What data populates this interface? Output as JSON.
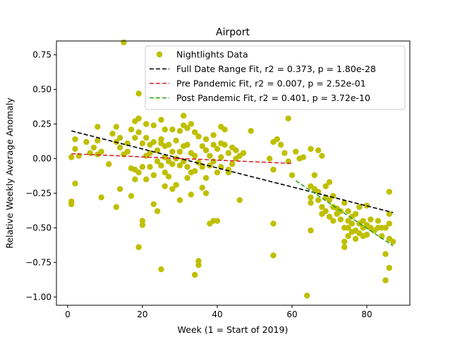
{
  "chart_data": {
    "type": "scatter",
    "title": "Airport",
    "xlabel": "Week (1 = Start of 2019)",
    "ylabel": "Relative Weekly Average Anomaly",
    "xlim": [
      -3,
      91.5
    ],
    "ylim": [
      -1.06,
      0.85
    ],
    "xticks": [
      0,
      20,
      40,
      60,
      80
    ],
    "yticks": [
      -1.0,
      -0.75,
      -0.5,
      -0.25,
      0.0,
      0.25,
      0.5,
      0.75
    ],
    "ytick_labels": [
      "−1.00",
      "−0.75",
      "−0.50",
      "−0.25",
      "0.00",
      "0.25",
      "0.50",
      "0.75"
    ],
    "grid": false,
    "legend_position": "top-right",
    "series": [
      {
        "name": "Nightlights Data",
        "kind": "scatter",
        "color": "#bfbf00",
        "points": [
          [
            1,
            0.01
          ],
          [
            1,
            -0.31
          ],
          [
            1,
            -0.33
          ],
          [
            2,
            0.14
          ],
          [
            2,
            0.07
          ],
          [
            2,
            -0.18
          ],
          [
            3,
            0.02
          ],
          [
            5,
            0.12
          ],
          [
            6,
            0.04
          ],
          [
            7,
            0.08
          ],
          [
            8,
            0.23
          ],
          [
            8,
            0.13
          ],
          [
            8,
            0.03
          ],
          [
            9,
            0.05
          ],
          [
            9,
            -0.28
          ],
          [
            11,
            -0.04
          ],
          [
            12,
            0.18
          ],
          [
            13,
            0.12
          ],
          [
            13,
            0.23
          ],
          [
            13,
            -0.35
          ],
          [
            14,
            0.15
          ],
          [
            14,
            0.08
          ],
          [
            14,
            -0.22
          ],
          [
            15,
            0.84
          ],
          [
            15,
            0.03
          ],
          [
            16,
            0.11
          ],
          [
            16,
            0.05
          ],
          [
            17,
            0.21
          ],
          [
            17,
            -0.07
          ],
          [
            17,
            -0.27
          ],
          [
            18,
            0.27
          ],
          [
            18,
            0.15
          ],
          [
            18,
            -0.08
          ],
          [
            18,
            -0.15
          ],
          [
            19,
            0.47
          ],
          [
            19,
            0.29
          ],
          [
            19,
            0.19
          ],
          [
            19,
            -0.1
          ],
          [
            19,
            -0.64
          ],
          [
            20,
            0.11
          ],
          [
            20,
            -0.06
          ],
          [
            20,
            -0.45
          ],
          [
            20,
            -0.48
          ],
          [
            21,
            0.25
          ],
          [
            21,
            0.15
          ],
          [
            21,
            0.02
          ],
          [
            21,
            -0.15
          ],
          [
            22,
            0.1
          ],
          [
            22,
            0.04
          ],
          [
            22,
            -0.06
          ],
          [
            23,
            0.24
          ],
          [
            23,
            0.12
          ],
          [
            23,
            -0.12
          ],
          [
            23,
            -0.33
          ],
          [
            24,
            0.43
          ],
          [
            24,
            0.06
          ],
          [
            24,
            -0.02
          ],
          [
            24,
            -0.38
          ],
          [
            25,
            0.28
          ],
          [
            25,
            0.14
          ],
          [
            25,
            0.11
          ],
          [
            25,
            -0.05
          ],
          [
            25,
            -0.8
          ],
          [
            26,
            0.21
          ],
          [
            26,
            0.09
          ],
          [
            26,
            0.01
          ],
          [
            26,
            -0.1
          ],
          [
            26,
            -0.2
          ],
          [
            27,
            0.1
          ],
          [
            27,
            -0.02
          ],
          [
            27,
            -0.13
          ],
          [
            28,
            0.21
          ],
          [
            28,
            0.05
          ],
          [
            28,
            -0.04
          ],
          [
            28,
            -0.22
          ],
          [
            29,
            0.13
          ],
          [
            29,
            0.0
          ],
          [
            29,
            -0.19
          ],
          [
            30,
            0.2
          ],
          [
            30,
            0.05
          ],
          [
            30,
            -0.05
          ],
          [
            30,
            -0.3
          ],
          [
            31,
            0.31
          ],
          [
            31,
            0.24
          ],
          [
            31,
            0.09
          ],
          [
            31,
            -0.02
          ],
          [
            32,
            0.22
          ],
          [
            32,
            0.1
          ],
          [
            32,
            -0.06
          ],
          [
            32,
            -0.14
          ],
          [
            33,
            0.25
          ],
          [
            33,
            0.04
          ],
          [
            33,
            -0.1
          ],
          [
            33,
            -0.26
          ],
          [
            34,
            0.19
          ],
          [
            34,
            0.02
          ],
          [
            34,
            -0.09
          ],
          [
            34,
            -0.84
          ],
          [
            35,
            0.16
          ],
          [
            35,
            -0.03
          ],
          [
            35,
            -0.74
          ],
          [
            35,
            -0.77
          ],
          [
            36,
            0.09
          ],
          [
            36,
            -0.06
          ],
          [
            36,
            -0.21
          ],
          [
            37,
            0.14
          ],
          [
            37,
            0.06
          ],
          [
            37,
            -0.14
          ],
          [
            37,
            -0.25
          ],
          [
            38,
            0.02
          ],
          [
            38,
            -0.05
          ],
          [
            38,
            -0.47
          ],
          [
            39,
            0.17
          ],
          [
            39,
            0.1
          ],
          [
            39,
            -0.02
          ],
          [
            39,
            -0.45
          ],
          [
            40,
            0.07
          ],
          [
            40,
            -0.1
          ],
          [
            40,
            -0.45
          ],
          [
            41,
            0.23
          ],
          [
            41,
            0.11
          ],
          [
            41,
            0.01
          ],
          [
            41,
            -0.06
          ],
          [
            42,
            0.21
          ],
          [
            42,
            0.1
          ],
          [
            43,
            0.04
          ],
          [
            43,
            -0.08
          ],
          [
            43,
            -0.1
          ],
          [
            44,
            0.08
          ],
          [
            44,
            -0.04
          ],
          [
            45,
            0.06
          ],
          [
            45,
            0.0
          ],
          [
            46,
            0.02
          ],
          [
            46,
            -0.3
          ],
          [
            47,
            0.04
          ],
          [
            49,
            0.2
          ],
          [
            54,
            0.0
          ],
          [
            55,
            0.12
          ],
          [
            55,
            -0.08
          ],
          [
            55,
            -0.47
          ],
          [
            55,
            -0.7
          ],
          [
            56,
            0.14
          ],
          [
            57,
            0.1
          ],
          [
            58,
            0.04
          ],
          [
            59,
            0.29
          ],
          [
            59,
            -0.02
          ],
          [
            60,
            -0.12
          ],
          [
            61,
            0.05
          ],
          [
            62,
            0.0
          ],
          [
            63,
            0.01
          ],
          [
            64,
            -0.99
          ],
          [
            65,
            -0.52
          ],
          [
            65,
            -0.2
          ],
          [
            65,
            -0.28
          ],
          [
            65,
            -0.32
          ],
          [
            65,
            0.07
          ],
          [
            66,
            -0.12
          ],
          [
            66,
            -0.22
          ],
          [
            67,
            0.06
          ],
          [
            67,
            -0.24
          ],
          [
            67,
            -0.3
          ],
          [
            68,
            0.02
          ],
          [
            68,
            -0.35
          ],
          [
            68,
            -0.4
          ],
          [
            69,
            -0.2
          ],
          [
            69,
            -0.28
          ],
          [
            69,
            -0.38
          ],
          [
            70,
            -0.17
          ],
          [
            70,
            -0.3
          ],
          [
            70,
            -0.42
          ],
          [
            71,
            -0.27
          ],
          [
            71,
            -0.35
          ],
          [
            71,
            -0.45
          ],
          [
            72,
            -0.36
          ],
          [
            72,
            -0.4
          ],
          [
            73,
            -0.38
          ],
          [
            73,
            -0.44
          ],
          [
            74,
            -0.32
          ],
          [
            74,
            -0.5
          ],
          [
            74,
            -0.6
          ],
          [
            74,
            -0.64
          ],
          [
            75,
            -0.38
          ],
          [
            75,
            -0.45
          ],
          [
            75,
            -0.5
          ],
          [
            75,
            -0.56
          ],
          [
            76,
            -0.42
          ],
          [
            76,
            -0.47
          ],
          [
            76,
            -0.53
          ],
          [
            77,
            -0.4
          ],
          [
            77,
            -0.52
          ],
          [
            77,
            -0.58
          ],
          [
            78,
            -0.35
          ],
          [
            78,
            -0.47
          ],
          [
            78,
            -0.54
          ],
          [
            79,
            -0.45
          ],
          [
            79,
            -0.5
          ],
          [
            79,
            -0.56
          ],
          [
            80,
            -0.34
          ],
          [
            80,
            -0.48
          ],
          [
            80,
            -0.55
          ],
          [
            81,
            -0.44
          ],
          [
            81,
            -0.5
          ],
          [
            82,
            -0.52
          ],
          [
            83,
            -0.45
          ],
          [
            83,
            -0.5
          ],
          [
            84,
            -0.5
          ],
          [
            84,
            -0.56
          ],
          [
            85,
            -0.5
          ],
          [
            85,
            -0.69
          ],
          [
            85,
            -0.88
          ],
          [
            86,
            -0.24
          ],
          [
            86,
            -0.4
          ],
          [
            86,
            -0.47
          ],
          [
            86,
            -0.79
          ],
          [
            86,
            -0.58
          ],
          [
            87,
            -0.6
          ]
        ]
      },
      {
        "name": "Full Date Range Fit, r2 = 0.373, p = 1.80e-28",
        "kind": "line",
        "color": "#000000",
        "dash": true,
        "points": [
          [
            1,
            0.2
          ],
          [
            87,
            -0.39
          ]
        ]
      },
      {
        "name": "Pre Pandemic Fit, r2 = 0.007, p = 2.52e-01",
        "kind": "line",
        "color": "#d62728",
        "dash": true,
        "points": [
          [
            1,
            0.035
          ],
          [
            60,
            -0.035
          ]
        ]
      },
      {
        "name": "Post Pandemic Fit, r2 = 0.401, p = 3.72e-10",
        "kind": "line",
        "color": "#2ca02c",
        "dash": true,
        "points": [
          [
            61,
            -0.16
          ],
          [
            87,
            -0.63
          ]
        ]
      }
    ]
  }
}
